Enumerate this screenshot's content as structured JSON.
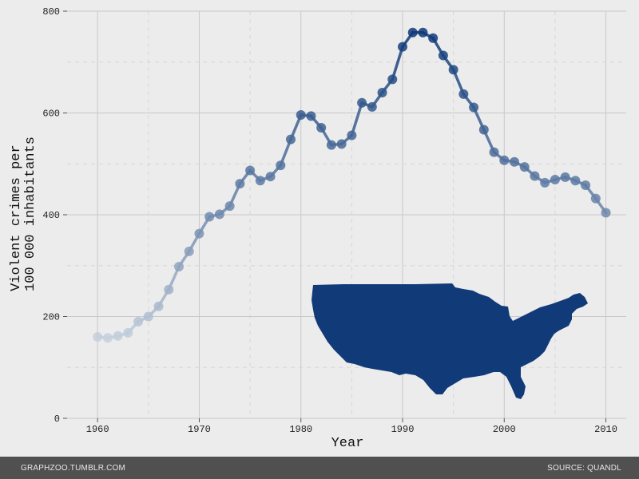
{
  "chart_data": {
    "type": "line",
    "title": "",
    "xlabel": "Year",
    "ylabel_lines": [
      "Violent crimes per",
      "100 000 inhabitants"
    ],
    "xlim": [
      1957,
      2012
    ],
    "ylim": [
      0,
      800
    ],
    "x_ticks": [
      1960,
      1970,
      1980,
      1990,
      2000,
      2010
    ],
    "y_ticks": [
      0,
      200,
      400,
      600,
      800
    ],
    "grid": true,
    "line_color": "#0f3a78",
    "faded_color": "#c5d0dd",
    "inset_map": "united-states-silhouette",
    "x": [
      1960,
      1961,
      1962,
      1963,
      1964,
      1965,
      1966,
      1967,
      1968,
      1969,
      1970,
      1971,
      1972,
      1973,
      1974,
      1975,
      1976,
      1977,
      1978,
      1979,
      1980,
      1981,
      1982,
      1983,
      1984,
      1985,
      1986,
      1987,
      1988,
      1989,
      1990,
      1991,
      1992,
      1993,
      1994,
      1995,
      1996,
      1997,
      1998,
      1999,
      2000,
      2001,
      2002,
      2003,
      2004,
      2005,
      2006,
      2007,
      2008,
      2009,
      2010
    ],
    "values": [
      160,
      158,
      162,
      168,
      190,
      200,
      220,
      253,
      298,
      328,
      363,
      396,
      401,
      417,
      461,
      487,
      467,
      475,
      497,
      548,
      596,
      594,
      571,
      537,
      539,
      556,
      620,
      612,
      640,
      666,
      730,
      758,
      758,
      747,
      713,
      685,
      637,
      611,
      567,
      523,
      507,
      504,
      494,
      476,
      463,
      469,
      474,
      467,
      458,
      432,
      404
    ]
  },
  "footer": {
    "left": "GRAPHZOO.TUMBLR.COM",
    "right": "SOURCE: QUANDL"
  }
}
